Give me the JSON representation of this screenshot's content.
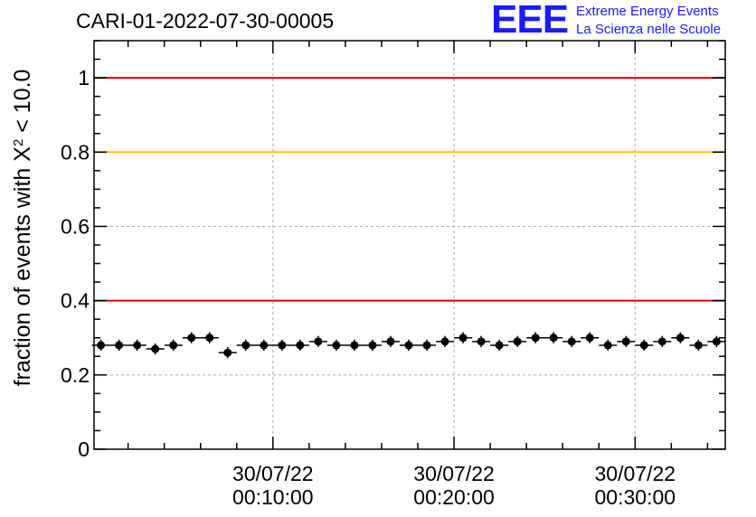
{
  "title": "CARI-01-2022-07-30-00005",
  "logo": {
    "mark": "EEE",
    "line1": "Extreme Energy Events",
    "line2": "La Scienza nelle Scuole",
    "color": "#1a1aff"
  },
  "chart_data": {
    "type": "scatter",
    "title": "CARI-01-2022-07-30-00005",
    "ylabel_prefix": "fraction of events with ",
    "ylabel_chi": "X",
    "ylabel_sup": "2",
    "ylabel_suffix": " < 10.0",
    "ylim": [
      0,
      1.1
    ],
    "yticks": [
      0,
      0.2,
      0.4,
      0.6,
      0.8,
      1
    ],
    "ytick_labels": [
      "0",
      "0.2",
      "0.4",
      "0.6",
      "0.8",
      "1"
    ],
    "xlim_minutes": [
      0.12,
      34.98
    ],
    "xticks_minutes": [
      10,
      20,
      30
    ],
    "xtick_labels": [
      {
        "date": "30/07/22",
        "time": "00:10:00"
      },
      {
        "date": "30/07/22",
        "time": "00:20:00"
      },
      {
        "date": "30/07/22",
        "time": "00:30:00"
      }
    ],
    "grid": true,
    "reference_lines": [
      {
        "y": 1.0,
        "color": "#e00000"
      },
      {
        "y": 0.8,
        "color": "#ffc400"
      },
      {
        "y": 0.4,
        "color": "#e00000"
      }
    ],
    "x_minutes": [
      0.5,
      1.5,
      2.5,
      3.5,
      4.5,
      5.5,
      6.5,
      7.5,
      8.5,
      9.5,
      10.5,
      11.5,
      12.5,
      13.5,
      14.5,
      15.5,
      16.5,
      17.5,
      18.5,
      19.5,
      20.5,
      21.5,
      22.5,
      23.5,
      24.5,
      25.5,
      26.5,
      27.5,
      28.5,
      29.5,
      30.5,
      31.5,
      32.5,
      33.5,
      34.5
    ],
    "values": [
      0.28,
      0.28,
      0.28,
      0.27,
      0.28,
      0.3,
      0.3,
      0.26,
      0.28,
      0.28,
      0.28,
      0.28,
      0.29,
      0.28,
      0.28,
      0.28,
      0.29,
      0.28,
      0.28,
      0.29,
      0.3,
      0.29,
      0.28,
      0.29,
      0.3,
      0.3,
      0.29,
      0.3,
      0.28,
      0.29,
      0.28,
      0.29,
      0.3,
      0.28,
      0.29
    ],
    "bin_width_minutes": 1.0,
    "y_error": 0.015
  }
}
